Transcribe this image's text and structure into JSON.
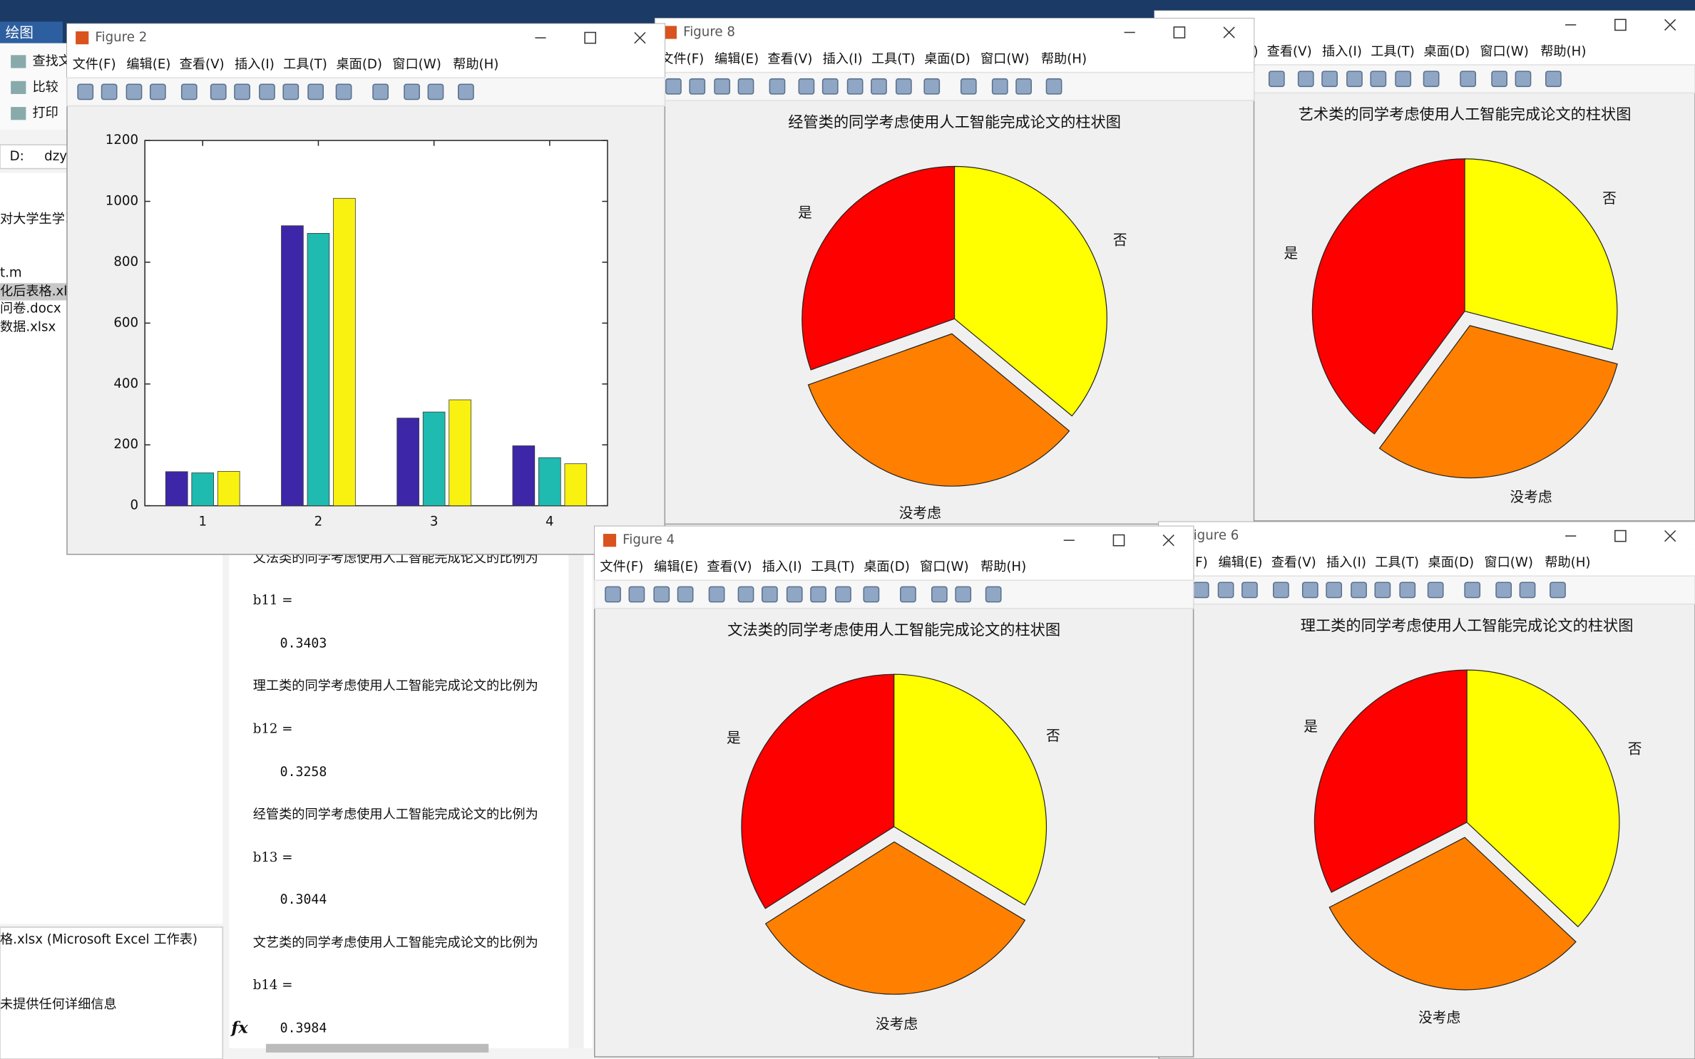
{
  "main_window": {
    "tab": "绘图",
    "toolbar": [
      "查找文",
      "比较",
      "打印"
    ],
    "path": [
      "D:",
      "dzy"
    ],
    "files": [
      "对大学生学习",
      "t.m",
      "化后表格.xls",
      "问卷.docx",
      "数据.xlsx"
    ],
    "details_title": "格.xlsx (Microsoft Excel 工作表)",
    "details_text": "未提供任何详细信息"
  },
  "console": {
    "prompt": "fx",
    "lines": [
      "文法类的同学考虑使用人工智能完成论文的比例为",
      "b11 =",
      "0.3403",
      "理工类的同学考虑使用人工智能完成论文的比例为",
      "b12 =",
      "0.3258",
      "经管类的同学考虑使用人工智能完成论文的比例为",
      "b13 =",
      "0.3044",
      "文艺类的同学考虑使用人工智能完成论文的比例为",
      "b14 =",
      "0.3984"
    ]
  },
  "menu": [
    "文件(F)",
    "编辑(E)",
    "查看(V)",
    "插入(I)",
    "工具(T)",
    "桌面(D)",
    "窗口(W)",
    "帮助(H)"
  ],
  "windows": [
    {
      "chart": {
        "type": "pie",
        "title": "艺术类的同学考虑使用人工智能完成论文的柱状图",
        "labels": [
          "是",
          "没考虑",
          "否"
        ],
        "values": [
          0.3984,
          0.31,
          0.29
        ],
        "colors": [
          "#ff0000",
          "#ff8000",
          "#ffff00"
        ],
        "explode": [
          false,
          true,
          false
        ]
      }
    },
    {
      "title": "Figure 8",
      "chart": {
        "type": "pie",
        "title": "经管类的同学考虑使用人工智能完成论文的柱状图",
        "labels": [
          "是",
          "没考虑",
          "否"
        ],
        "values": [
          0.3044,
          0.3356,
          0.36
        ],
        "colors": [
          "#ff0000",
          "#ff8000",
          "#ffff00"
        ],
        "explode": [
          false,
          true,
          false
        ]
      }
    },
    {
      "title": "Figure 2",
      "chart": {
        "type": "bar",
        "xticks": [
          1,
          2,
          3,
          4
        ],
        "xlim": [
          0.5,
          4.5
        ],
        "ylim": [
          0,
          1200
        ],
        "yticks": [
          0,
          200,
          400,
          600,
          800,
          1000,
          1200
        ],
        "series": [
          {
            "color": "#3e26a8",
            "values": [
              112,
              920,
              288,
              197
            ]
          },
          {
            "color": "#1fbab0",
            "values": [
              108,
              895,
              308,
              158
            ]
          },
          {
            "color": "#f9f10f",
            "values": [
              113,
              1010,
              348,
              138
            ]
          }
        ]
      }
    },
    {
      "title": "Figure 6",
      "chart": {
        "type": "pie",
        "title": "理工类的同学考虑使用人工智能完成论文的柱状图",
        "labels": [
          "是",
          "没考虑",
          "否"
        ],
        "values": [
          0.3258,
          0.304,
          0.37
        ],
        "colors": [
          "#ff0000",
          "#ff8000",
          "#ffff00"
        ],
        "explode": [
          false,
          true,
          false
        ]
      }
    },
    {
      "title": "Figure 4",
      "chart": {
        "type": "pie",
        "title": "文法类的同学考虑使用人工智能完成论文的柱状图",
        "labels": [
          "是",
          "没考虑",
          "否"
        ],
        "values": [
          0.3403,
          0.324,
          0.336
        ],
        "colors": [
          "#ff0000",
          "#ff8000",
          "#ffff00"
        ],
        "explode": [
          false,
          true,
          false
        ]
      }
    }
  ]
}
